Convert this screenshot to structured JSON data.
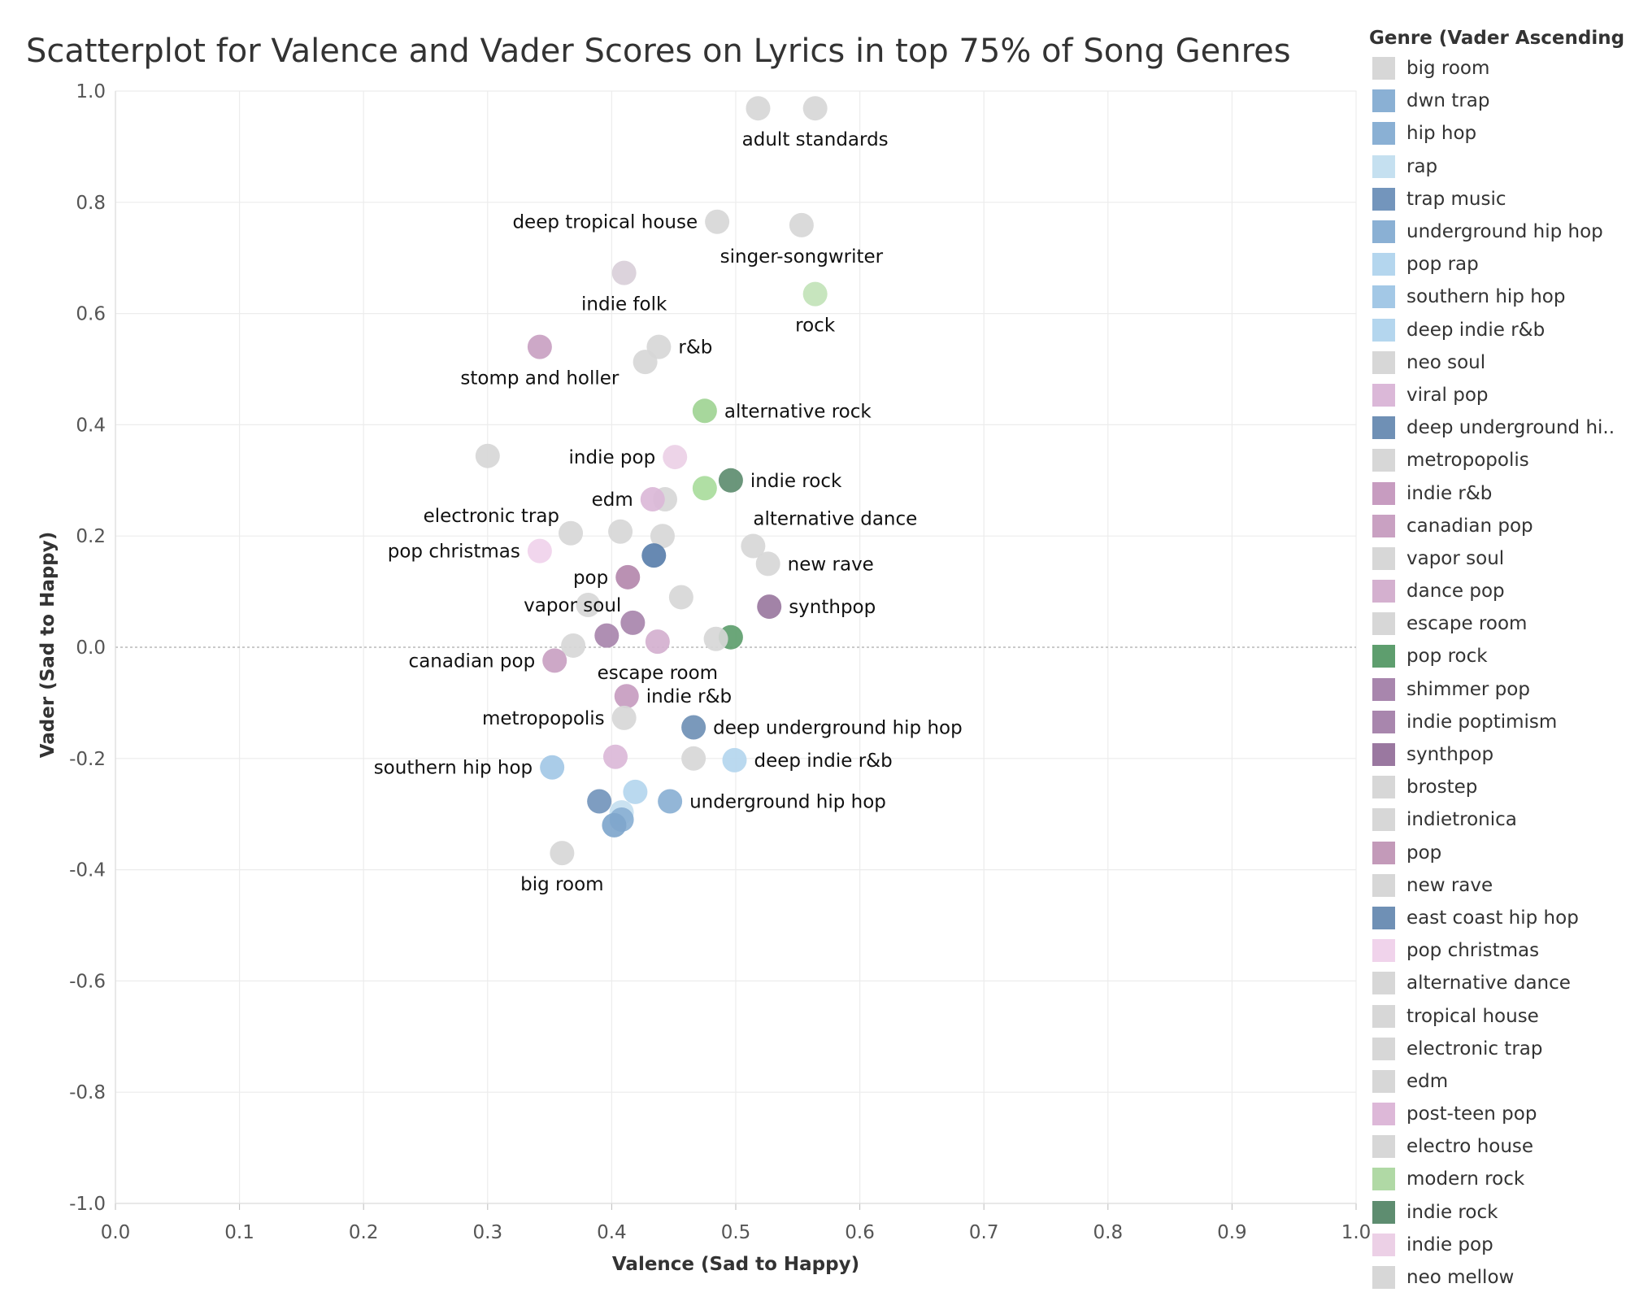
{
  "chart_data": {
    "type": "scatter",
    "title": "Scatterplot for Valence and Vader Scores on Lyrics in top 75% of Song Genres",
    "xlabel": "Valence (Sad to Happy)",
    "ylabel": "Vader (Sad to Happy)",
    "xlim": [
      0.0,
      1.0
    ],
    "ylim": [
      -1.0,
      1.0
    ],
    "x_ticks": [
      "0.0",
      "0.1",
      "0.2",
      "0.3",
      "0.4",
      "0.5",
      "0.6",
      "0.7",
      "0.8",
      "0.9",
      "1.0"
    ],
    "y_ticks": [
      "1.0",
      "0.8",
      "0.6",
      "0.4",
      "0.2",
      "0.0",
      "-0.2",
      "-0.4",
      "-0.6",
      "-0.8",
      "-1.0"
    ],
    "grid": true,
    "legend": {
      "title": "Genre (Vader Ascending)",
      "position": "right",
      "items": [
        {
          "label": "big room",
          "color": "#d7d7d7"
        },
        {
          "label": "dwn trap",
          "color": "#8ab0d4"
        },
        {
          "label": "hip hop",
          "color": "#8ab0d4"
        },
        {
          "label": "rap",
          "color": "#c5e0f0"
        },
        {
          "label": "trap music",
          "color": "#7395bc"
        },
        {
          "label": "underground hip hop",
          "color": "#8ab0d4"
        },
        {
          "label": "pop rap",
          "color": "#b4d6ee"
        },
        {
          "label": "southern hip hop",
          "color": "#a3c8e6"
        },
        {
          "label": "deep indie r&b",
          "color": "#b4d6ee"
        },
        {
          "label": "neo soul",
          "color": "#d7d7d7"
        },
        {
          "label": "viral pop",
          "color": "#dbb8d8"
        },
        {
          "label": "deep underground hi..",
          "color": "#6f90b5"
        },
        {
          "label": "metropopolis",
          "color": "#d7d7d7"
        },
        {
          "label": "indie r&b",
          "color": "#c79cc0"
        },
        {
          "label": "canadian pop",
          "color": "#c9a1c2"
        },
        {
          "label": "vapor soul",
          "color": "#d7d7d7"
        },
        {
          "label": "dance pop",
          "color": "#d4b0cf"
        },
        {
          "label": "escape room",
          "color": "#d7d7d7"
        },
        {
          "label": "pop rock",
          "color": "#5e9e6e"
        },
        {
          "label": "shimmer pop",
          "color": "#a886ad"
        },
        {
          "label": "indie poptimism",
          "color": "#a886ad"
        },
        {
          "label": "synthpop",
          "color": "#9a78a0"
        },
        {
          "label": "brostep",
          "color": "#d7d7d7"
        },
        {
          "label": "indietronica",
          "color": "#d7d7d7"
        },
        {
          "label": "pop",
          "color": "#c39ab9"
        },
        {
          "label": "new rave",
          "color": "#d7d7d7"
        },
        {
          "label": "east coast hip hop",
          "color": "#6f90b5"
        },
        {
          "label": "pop christmas",
          "color": "#f0d3eb"
        },
        {
          "label": "alternative dance",
          "color": "#d7d7d7"
        },
        {
          "label": "tropical house",
          "color": "#d7d7d7"
        },
        {
          "label": "electronic trap",
          "color": "#d7d7d7"
        },
        {
          "label": "edm",
          "color": "#d7d7d7"
        },
        {
          "label": "post-teen pop",
          "color": "#ddb8d8"
        },
        {
          "label": "electro house",
          "color": "#d7d7d7"
        },
        {
          "label": "modern rock",
          "color": "#b0d9a5"
        },
        {
          "label": "indie rock",
          "color": "#5e8d70"
        },
        {
          "label": "indie pop",
          "color": "#ecd0e6"
        },
        {
          "label": "neo mellow",
          "color": "#d7d7d7"
        }
      ]
    },
    "points": [
      {
        "x": 0.518,
        "y": 0.969,
        "color": "#d7d7d7",
        "label": ""
      },
      {
        "x": 0.564,
        "y": 0.969,
        "color": "#d7d7d7",
        "label": "adult standards"
      },
      {
        "x": 0.485,
        "y": 0.765,
        "color": "#d7d7d7",
        "label": "deep tropical house"
      },
      {
        "x": 0.553,
        "y": 0.759,
        "color": "#d7d7d7",
        "label": "singer-songwriter"
      },
      {
        "x": 0.41,
        "y": 0.673,
        "color": "#d9cfd9",
        "label": "indie folk"
      },
      {
        "x": 0.564,
        "y": 0.635,
        "color": "#c2e3b8",
        "label": "rock"
      },
      {
        "x": 0.342,
        "y": 0.54,
        "color": "#c9a1c2",
        "label": "stomp and holler"
      },
      {
        "x": 0.438,
        "y": 0.54,
        "color": "#d7d7d7",
        "label": "r&b"
      },
      {
        "x": 0.427,
        "y": 0.513,
        "color": "#d7d7d7",
        "label": ""
      },
      {
        "x": 0.475,
        "y": 0.425,
        "color": "#9fd494",
        "label": "alternative rock"
      },
      {
        "x": 0.3,
        "y": 0.344,
        "color": "#d7d7d7",
        "label": ""
      },
      {
        "x": 0.451,
        "y": 0.342,
        "color": "#ecd0e6",
        "label": "indie pop"
      },
      {
        "x": 0.496,
        "y": 0.3,
        "color": "#5e8d70",
        "label": "indie rock"
      },
      {
        "x": 0.475,
        "y": 0.286,
        "color": "#a9dc9c",
        "label": ""
      },
      {
        "x": 0.443,
        "y": 0.266,
        "color": "#d7d7d7",
        "label": ""
      },
      {
        "x": 0.433,
        "y": 0.266,
        "color": "#dbb8d8",
        "label": "edm"
      },
      {
        "x": 0.367,
        "y": 0.205,
        "color": "#d7d7d7",
        "label": "electronic trap"
      },
      {
        "x": 0.407,
        "y": 0.208,
        "color": "#d7d7d7",
        "label": ""
      },
      {
        "x": 0.441,
        "y": 0.2,
        "color": "#d7d7d7",
        "label": ""
      },
      {
        "x": 0.514,
        "y": 0.182,
        "color": "#d7d7d7",
        "label": "alternative dance"
      },
      {
        "x": 0.342,
        "y": 0.173,
        "color": "#f0d3eb",
        "label": "pop christmas"
      },
      {
        "x": 0.434,
        "y": 0.165,
        "color": "#5a7fab",
        "label": ""
      },
      {
        "x": 0.526,
        "y": 0.15,
        "color": "#d7d7d7",
        "label": "new rave"
      },
      {
        "x": 0.413,
        "y": 0.126,
        "color": "#b488ad",
        "label": "pop"
      },
      {
        "x": 0.456,
        "y": 0.09,
        "color": "#d7d7d7",
        "label": ""
      },
      {
        "x": 0.381,
        "y": 0.076,
        "color": "#d7d7d7",
        "label": ""
      },
      {
        "x": 0.527,
        "y": 0.073,
        "color": "#9a78a0",
        "label": "synthpop"
      },
      {
        "x": 0.417,
        "y": 0.044,
        "color": "#a886ad",
        "label": "vapor soul"
      },
      {
        "x": 0.396,
        "y": 0.021,
        "color": "#a886ad",
        "label": ""
      },
      {
        "x": 0.496,
        "y": 0.018,
        "color": "#5e9e6e",
        "label": ""
      },
      {
        "x": 0.484,
        "y": 0.015,
        "color": "#d7d7d7",
        "label": ""
      },
      {
        "x": 0.437,
        "y": 0.01,
        "color": "#d4b0cf",
        "label": "escape room"
      },
      {
        "x": 0.369,
        "y": 0.003,
        "color": "#d7d7d7",
        "label": ""
      },
      {
        "x": 0.354,
        "y": -0.024,
        "color": "#c9a1c2",
        "label": "canadian pop"
      },
      {
        "x": 0.412,
        "y": -0.088,
        "color": "#c79cc0",
        "label": "indie r&b"
      },
      {
        "x": 0.41,
        "y": -0.127,
        "color": "#d7d7d7",
        "label": "metropopolis"
      },
      {
        "x": 0.466,
        "y": -0.144,
        "color": "#6f90b5",
        "label": "deep underground hip hop"
      },
      {
        "x": 0.403,
        "y": -0.197,
        "color": "#dbb8d8",
        "label": ""
      },
      {
        "x": 0.466,
        "y": -0.2,
        "color": "#d7d7d7",
        "label": ""
      },
      {
        "x": 0.499,
        "y": -0.203,
        "color": "#b4d6ee",
        "label": "deep indie r&b"
      },
      {
        "x": 0.352,
        "y": -0.216,
        "color": "#a3c8e6",
        "label": "southern hip hop"
      },
      {
        "x": 0.419,
        "y": -0.26,
        "color": "#b4d6ee",
        "label": ""
      },
      {
        "x": 0.447,
        "y": -0.277,
        "color": "#8ab0d4",
        "label": "underground hip hop"
      },
      {
        "x": 0.39,
        "y": -0.277,
        "color": "#7395bc",
        "label": ""
      },
      {
        "x": 0.408,
        "y": -0.297,
        "color": "#c5e0f0",
        "label": ""
      },
      {
        "x": 0.408,
        "y": -0.31,
        "color": "#8ab0d4",
        "label": ""
      },
      {
        "x": 0.402,
        "y": -0.32,
        "color": "#7fa6cc",
        "label": ""
      },
      {
        "x": 0.36,
        "y": -0.37,
        "color": "#d7d7d7",
        "label": "big room"
      }
    ],
    "point_label_placement": [
      "none",
      "below",
      "left",
      "below",
      "below",
      "below",
      "below",
      "right",
      "none",
      "right",
      "none",
      "left",
      "right",
      "none",
      "none",
      "left",
      "above-left",
      "none",
      "none",
      "above-right",
      "left",
      "none",
      "right",
      "left",
      "none",
      "none",
      "right",
      "above-left",
      "none",
      "none",
      "none",
      "below",
      "none",
      "left",
      "right",
      "left",
      "right",
      "none",
      "none",
      "right",
      "left",
      "none",
      "right",
      "none",
      "none",
      "none",
      "none",
      "below"
    ]
  }
}
